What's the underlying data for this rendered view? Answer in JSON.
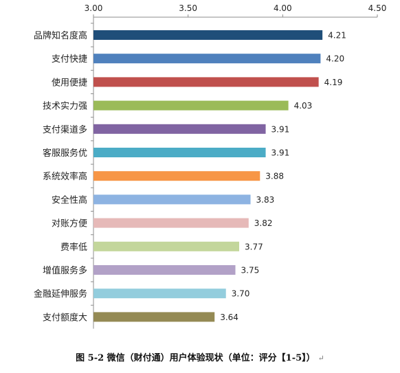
{
  "chart_data": {
    "type": "bar",
    "orientation": "horizontal",
    "categories": [
      "品牌知名度高",
      "支付快捷",
      "使用便捷",
      "技术实力强",
      "支付渠道多",
      "客服服务优",
      "系统效率高",
      "安全性高",
      "对账方便",
      "费率低",
      "增值服务多",
      "金融延伸服务",
      "支付额度大"
    ],
    "values": [
      4.21,
      4.2,
      4.19,
      4.03,
      3.91,
      3.91,
      3.88,
      3.83,
      3.82,
      3.77,
      3.75,
      3.7,
      3.64
    ],
    "value_labels": [
      "4.21",
      "4.20",
      "4.19",
      "4.03",
      "3.91",
      "3.91",
      "3.88",
      "3.83",
      "3.82",
      "3.77",
      "3.75",
      "3.70",
      "3.64"
    ],
    "colors": [
      "#1f4e79",
      "#4f81bd",
      "#c0504d",
      "#9bbb59",
      "#8064a2",
      "#4bacc6",
      "#f79646",
      "#8db3e2",
      "#e6b9b8",
      "#c3d69b",
      "#b2a1c7",
      "#93cddd",
      "#948a54"
    ],
    "xlim": [
      3.0,
      4.5
    ],
    "ticks": [
      "3.00",
      "3.50",
      "4.00",
      "4.50"
    ],
    "tick_values": [
      3.0,
      3.5,
      4.0,
      4.5
    ],
    "axis_position": "top",
    "grid": false,
    "legend": "none"
  },
  "caption": {
    "text": "图 5-2 微信（财付通）用户体验现状（单位：评分【1-5】）",
    "return_mark": "↵"
  }
}
